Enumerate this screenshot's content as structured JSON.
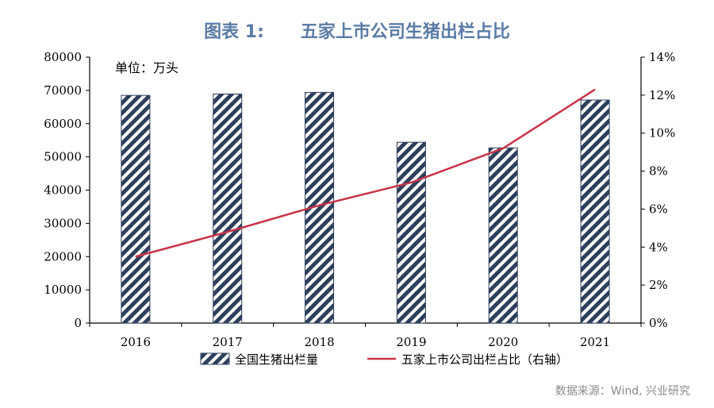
{
  "title": "图表 1:      五家上市公司生猪出栏占比",
  "source": "数据来源：Wind, 兴业研究",
  "colors": {
    "bar_stripe": "#2e3f5c",
    "line": "#c8344a",
    "title": "#5b7ca6"
  },
  "chart_data": {
    "type": "bar",
    "unit_label": "单位：万头",
    "categories": [
      "2016",
      "2017",
      "2018",
      "2019",
      "2020",
      "2021"
    ],
    "series": [
      {
        "name": "全国生猪出栏量",
        "type": "bar",
        "axis": "left",
        "values": [
          68500,
          68900,
          69400,
          54400,
          52700,
          67100
        ]
      },
      {
        "name": "五家上市公司出栏占比（右轴）",
        "type": "line",
        "axis": "right",
        "values": [
          3.5,
          4.8,
          6.2,
          7.4,
          9.2,
          12.3
        ]
      }
    ],
    "y_left": {
      "lim": [
        0,
        80000
      ],
      "ticks": [
        "0",
        "10000",
        "20000",
        "30000",
        "40000",
        "50000",
        "60000",
        "70000",
        "80000"
      ]
    },
    "y_right": {
      "lim": [
        0,
        14
      ],
      "ticks": [
        "0%",
        "2%",
        "4%",
        "6%",
        "8%",
        "10%",
        "12%",
        "14%"
      ]
    },
    "legend_position": "bottom"
  }
}
